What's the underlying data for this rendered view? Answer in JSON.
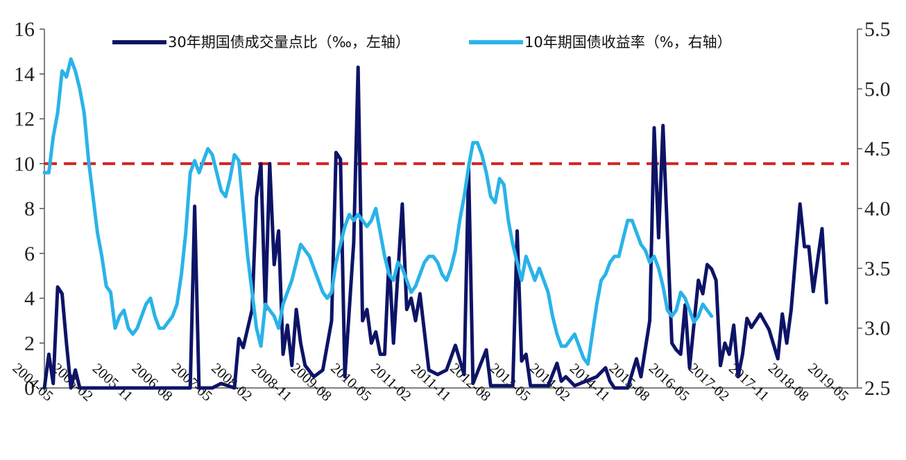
{
  "chart_data": {
    "type": "line",
    "title": "",
    "legend_position": "top-center",
    "grid": false,
    "xlabel": "",
    "ylabel_left": "",
    "ylabel_right": "",
    "x_tick_labels": [
      "2004-05",
      "2005-02",
      "2005-11",
      "2006-08",
      "2007-05",
      "2008-02",
      "2008-11",
      "2009-08",
      "2010-05",
      "2011-02",
      "2011-11",
      "2012-08",
      "2013-05",
      "2014-02",
      "2014-11",
      "2015-08",
      "2016-05",
      "2017-02",
      "2017-11",
      "2018-08",
      "2019-05"
    ],
    "y_left": {
      "ticks": [
        "0",
        "2",
        "4",
        "6",
        "8",
        "10",
        "12",
        "14",
        "16"
      ],
      "ylim": [
        0,
        16
      ]
    },
    "y_right": {
      "ticks": [
        "2.5",
        "3.0",
        "3.5",
        "4.0",
        "4.5",
        "5.0",
        "5.5"
      ],
      "ylim": [
        2.5,
        5.5
      ]
    },
    "reference_line": {
      "axis": "left",
      "value": 10,
      "color": "#d42020",
      "style": "dashed"
    },
    "series": [
      {
        "name": "30年期国债成交量点比（‰，左轴）",
        "axis": "left",
        "color": "#0d1466",
        "points": [
          [
            "2004-05",
            0
          ],
          [
            "2004-06",
            1.5
          ],
          [
            "2004-07",
            0.2
          ],
          [
            "2004-08",
            4.5
          ],
          [
            "2004-09",
            4.2
          ],
          [
            "2004-10",
            2
          ],
          [
            "2004-11",
            0
          ],
          [
            "2004-12",
            0.8
          ],
          [
            "2005-01",
            0
          ],
          [
            "2005-06",
            0
          ],
          [
            "2006-01",
            0
          ],
          [
            "2006-08",
            0
          ],
          [
            "2007-02",
            0
          ],
          [
            "2007-03",
            8.1
          ],
          [
            "2007-04",
            0
          ],
          [
            "2007-07",
            0
          ],
          [
            "2007-09",
            0.2
          ],
          [
            "2007-12",
            0
          ],
          [
            "2008-01",
            2.2
          ],
          [
            "2008-02",
            1.8
          ],
          [
            "2008-04",
            3.5
          ],
          [
            "2008-05",
            8.5
          ],
          [
            "2008-06",
            10
          ],
          [
            "2008-07",
            3.5
          ],
          [
            "2008-08",
            10
          ],
          [
            "2008-09",
            5.5
          ],
          [
            "2008-10",
            7
          ],
          [
            "2008-11",
            1.5
          ],
          [
            "2008-12",
            2.8
          ],
          [
            "2009-01",
            1
          ],
          [
            "2009-02",
            3.5
          ],
          [
            "2009-03",
            2
          ],
          [
            "2009-04",
            1
          ],
          [
            "2009-06",
            0.5
          ],
          [
            "2009-08",
            0.8
          ],
          [
            "2009-10",
            3
          ],
          [
            "2009-11",
            10.5
          ],
          [
            "2009-12",
            10.2
          ],
          [
            "2010-01",
            0.5
          ],
          [
            "2010-03",
            6.5
          ],
          [
            "2010-04",
            14.3
          ],
          [
            "2010-05",
            3
          ],
          [
            "2010-06",
            3.5
          ],
          [
            "2010-07",
            2
          ],
          [
            "2010-08",
            2.5
          ],
          [
            "2010-09",
            1.5
          ],
          [
            "2010-10",
            1.5
          ],
          [
            "2010-11",
            5.8
          ],
          [
            "2010-12",
            2
          ],
          [
            "2011-02",
            8.2
          ],
          [
            "2011-03",
            3.5
          ],
          [
            "2011-04",
            4
          ],
          [
            "2011-05",
            3
          ],
          [
            "2011-06",
            4.2
          ],
          [
            "2011-07",
            2.5
          ],
          [
            "2011-08",
            0.8
          ],
          [
            "2011-10",
            0.6
          ],
          [
            "2011-12",
            0.8
          ],
          [
            "2012-02",
            1.9
          ],
          [
            "2012-04",
            0.6
          ],
          [
            "2012-05",
            9.8
          ],
          [
            "2012-06",
            0.2
          ],
          [
            "2012-09",
            1.7
          ],
          [
            "2012-10",
            0.1
          ],
          [
            "2013-03",
            0.1
          ],
          [
            "2013-04",
            7
          ],
          [
            "2013-05",
            1.2
          ],
          [
            "2013-06",
            1.5
          ],
          [
            "2013-07",
            0.1
          ],
          [
            "2013-11",
            0.1
          ],
          [
            "2014-01",
            1.1
          ],
          [
            "2014-02",
            0.3
          ],
          [
            "2014-03",
            0.5
          ],
          [
            "2014-05",
            0.1
          ],
          [
            "2014-10",
            0.5
          ],
          [
            "2014-12",
            0.9
          ],
          [
            "2015-01",
            0.3
          ],
          [
            "2015-02",
            0
          ],
          [
            "2015-05",
            0
          ],
          [
            "2015-07",
            1.3
          ],
          [
            "2015-08",
            0.5
          ],
          [
            "2015-10",
            3
          ],
          [
            "2015-11",
            11.6
          ],
          [
            "2015-12",
            6.7
          ],
          [
            "2016-01",
            11.7
          ],
          [
            "2016-03",
            2
          ],
          [
            "2016-04",
            1.7
          ],
          [
            "2016-05",
            1.5
          ],
          [
            "2016-06",
            3.7
          ],
          [
            "2016-07",
            0.9
          ],
          [
            "2016-09",
            4.8
          ],
          [
            "2016-10",
            4.2
          ],
          [
            "2016-11",
            5.5
          ],
          [
            "2016-12",
            5.3
          ],
          [
            "2017-01",
            4.8
          ],
          [
            "2017-02",
            1
          ],
          [
            "2017-03",
            2
          ],
          [
            "2017-04",
            1.5
          ],
          [
            "2017-05",
            2.8
          ],
          [
            "2017-06",
            0.5
          ],
          [
            "2017-07",
            1.5
          ],
          [
            "2017-08",
            3.1
          ],
          [
            "2017-09",
            2.7
          ],
          [
            "2017-11",
            3.3
          ],
          [
            "2018-01",
            2.6
          ],
          [
            "2018-03",
            1.3
          ],
          [
            "2018-04",
            3.3
          ],
          [
            "2018-05",
            2
          ],
          [
            "2018-06",
            3.5
          ],
          [
            "2018-08",
            8.2
          ],
          [
            "2018-09",
            6.3
          ],
          [
            "2018-10",
            6.3
          ],
          [
            "2018-11",
            4.3
          ],
          [
            "2019-01",
            7.1
          ],
          [
            "2019-02",
            3.8
          ]
        ]
      },
      {
        "name": "10年期国债收益率（%，右轴）",
        "axis": "right",
        "color": "#2ab3e8",
        "points": [
          [
            "2004-05",
            4.3
          ],
          [
            "2004-06",
            4.3
          ],
          [
            "2004-07",
            4.6
          ],
          [
            "2004-08",
            4.8
          ],
          [
            "2004-09",
            5.15
          ],
          [
            "2004-10",
            5.1
          ],
          [
            "2004-11",
            5.25
          ],
          [
            "2004-12",
            5.15
          ],
          [
            "2005-01",
            5.0
          ],
          [
            "2005-02",
            4.8
          ],
          [
            "2005-03",
            4.4
          ],
          [
            "2005-04",
            4.1
          ],
          [
            "2005-05",
            3.8
          ],
          [
            "2005-06",
            3.6
          ],
          [
            "2005-07",
            3.35
          ],
          [
            "2005-08",
            3.3
          ],
          [
            "2005-09",
            3.0
          ],
          [
            "2005-10",
            3.1
          ],
          [
            "2005-11",
            3.15
          ],
          [
            "2005-12",
            3.0
          ],
          [
            "2006-01",
            2.95
          ],
          [
            "2006-02",
            3.0
          ],
          [
            "2006-03",
            3.1
          ],
          [
            "2006-04",
            3.2
          ],
          [
            "2006-05",
            3.25
          ],
          [
            "2006-06",
            3.1
          ],
          [
            "2006-07",
            3.0
          ],
          [
            "2006-08",
            3.0
          ],
          [
            "2006-09",
            3.05
          ],
          [
            "2006-10",
            3.1
          ],
          [
            "2006-11",
            3.2
          ],
          [
            "2006-12",
            3.45
          ],
          [
            "2007-01",
            3.8
          ],
          [
            "2007-02",
            4.3
          ],
          [
            "2007-03",
            4.4
          ],
          [
            "2007-04",
            4.3
          ],
          [
            "2007-05",
            4.4
          ],
          [
            "2007-06",
            4.5
          ],
          [
            "2007-07",
            4.45
          ],
          [
            "2007-08",
            4.3
          ],
          [
            "2007-09",
            4.15
          ],
          [
            "2007-10",
            4.1
          ],
          [
            "2007-11",
            4.25
          ],
          [
            "2007-12",
            4.45
          ],
          [
            "2008-01",
            4.4
          ],
          [
            "2008-02",
            4.0
          ],
          [
            "2008-03",
            3.6
          ],
          [
            "2008-04",
            3.3
          ],
          [
            "2008-05",
            3.0
          ],
          [
            "2008-06",
            2.85
          ],
          [
            "2008-07",
            3.2
          ],
          [
            "2008-08",
            3.15
          ],
          [
            "2008-09",
            3.1
          ],
          [
            "2008-10",
            3.0
          ],
          [
            "2008-11",
            3.2
          ],
          [
            "2008-12",
            3.3
          ],
          [
            "2009-01",
            3.4
          ],
          [
            "2009-02",
            3.55
          ],
          [
            "2009-03",
            3.7
          ],
          [
            "2009-04",
            3.65
          ],
          [
            "2009-05",
            3.6
          ],
          [
            "2009-06",
            3.5
          ],
          [
            "2009-07",
            3.4
          ],
          [
            "2009-08",
            3.3
          ],
          [
            "2009-09",
            3.25
          ],
          [
            "2009-10",
            3.3
          ],
          [
            "2009-11",
            3.55
          ],
          [
            "2009-12",
            3.7
          ],
          [
            "2010-01",
            3.85
          ],
          [
            "2010-02",
            3.95
          ],
          [
            "2010-03",
            3.9
          ],
          [
            "2010-04",
            3.95
          ],
          [
            "2010-05",
            3.9
          ],
          [
            "2010-06",
            3.85
          ],
          [
            "2010-07",
            3.9
          ],
          [
            "2010-08",
            4.0
          ],
          [
            "2010-09",
            3.8
          ],
          [
            "2010-10",
            3.6
          ],
          [
            "2010-11",
            3.45
          ],
          [
            "2010-12",
            3.4
          ],
          [
            "2011-01",
            3.55
          ],
          [
            "2011-02",
            3.5
          ],
          [
            "2011-03",
            3.4
          ],
          [
            "2011-04",
            3.3
          ],
          [
            "2011-05",
            3.35
          ],
          [
            "2011-06",
            3.45
          ],
          [
            "2011-07",
            3.55
          ],
          [
            "2011-08",
            3.6
          ],
          [
            "2011-09",
            3.6
          ],
          [
            "2011-10",
            3.55
          ],
          [
            "2011-11",
            3.45
          ],
          [
            "2011-12",
            3.4
          ],
          [
            "2012-01",
            3.5
          ],
          [
            "2012-02",
            3.65
          ],
          [
            "2012-03",
            3.9
          ],
          [
            "2012-04",
            4.1
          ],
          [
            "2012-05",
            4.35
          ],
          [
            "2012-06",
            4.55
          ],
          [
            "2012-07",
            4.55
          ],
          [
            "2012-08",
            4.45
          ],
          [
            "2012-09",
            4.3
          ],
          [
            "2012-10",
            4.1
          ],
          [
            "2012-11",
            4.05
          ],
          [
            "2012-12",
            4.25
          ],
          [
            "2013-01",
            4.2
          ],
          [
            "2013-02",
            3.9
          ],
          [
            "2013-03",
            3.7
          ],
          [
            "2013-04",
            3.55
          ],
          [
            "2013-05",
            3.4
          ],
          [
            "2013-06",
            3.6
          ],
          [
            "2013-07",
            3.5
          ],
          [
            "2013-08",
            3.4
          ],
          [
            "2013-09",
            3.5
          ],
          [
            "2013-10",
            3.4
          ],
          [
            "2013-11",
            3.3
          ],
          [
            "2013-12",
            3.1
          ],
          [
            "2014-01",
            2.95
          ],
          [
            "2014-02",
            2.85
          ],
          [
            "2014-03",
            2.85
          ],
          [
            "2014-04",
            2.9
          ],
          [
            "2014-05",
            2.95
          ],
          [
            "2014-06",
            2.85
          ],
          [
            "2014-07",
            2.75
          ],
          [
            "2014-08",
            2.7
          ],
          [
            "2014-09",
            2.95
          ],
          [
            "2014-10",
            3.2
          ],
          [
            "2014-11",
            3.4
          ],
          [
            "2014-12",
            3.45
          ],
          [
            "2015-01",
            3.55
          ],
          [
            "2015-02",
            3.6
          ],
          [
            "2015-03",
            3.6
          ],
          [
            "2015-04",
            3.75
          ],
          [
            "2015-05",
            3.9
          ],
          [
            "2015-06",
            3.9
          ],
          [
            "2015-07",
            3.8
          ],
          [
            "2015-08",
            3.7
          ],
          [
            "2015-09",
            3.65
          ],
          [
            "2015-10",
            3.55
          ],
          [
            "2015-11",
            3.6
          ],
          [
            "2015-12",
            3.5
          ],
          [
            "2016-01",
            3.35
          ],
          [
            "2016-02",
            3.15
          ],
          [
            "2016-03",
            3.1
          ],
          [
            "2016-04",
            3.15
          ],
          [
            "2016-05",
            3.3
          ],
          [
            "2016-06",
            3.25
          ],
          [
            "2016-07",
            3.15
          ],
          [
            "2016-08",
            3.05
          ],
          [
            "2016-09",
            3.1
          ],
          [
            "2016-10",
            3.2
          ],
          [
            "2016-11",
            3.15
          ],
          [
            "2016-12",
            3.1
          ]
        ]
      }
    ]
  }
}
